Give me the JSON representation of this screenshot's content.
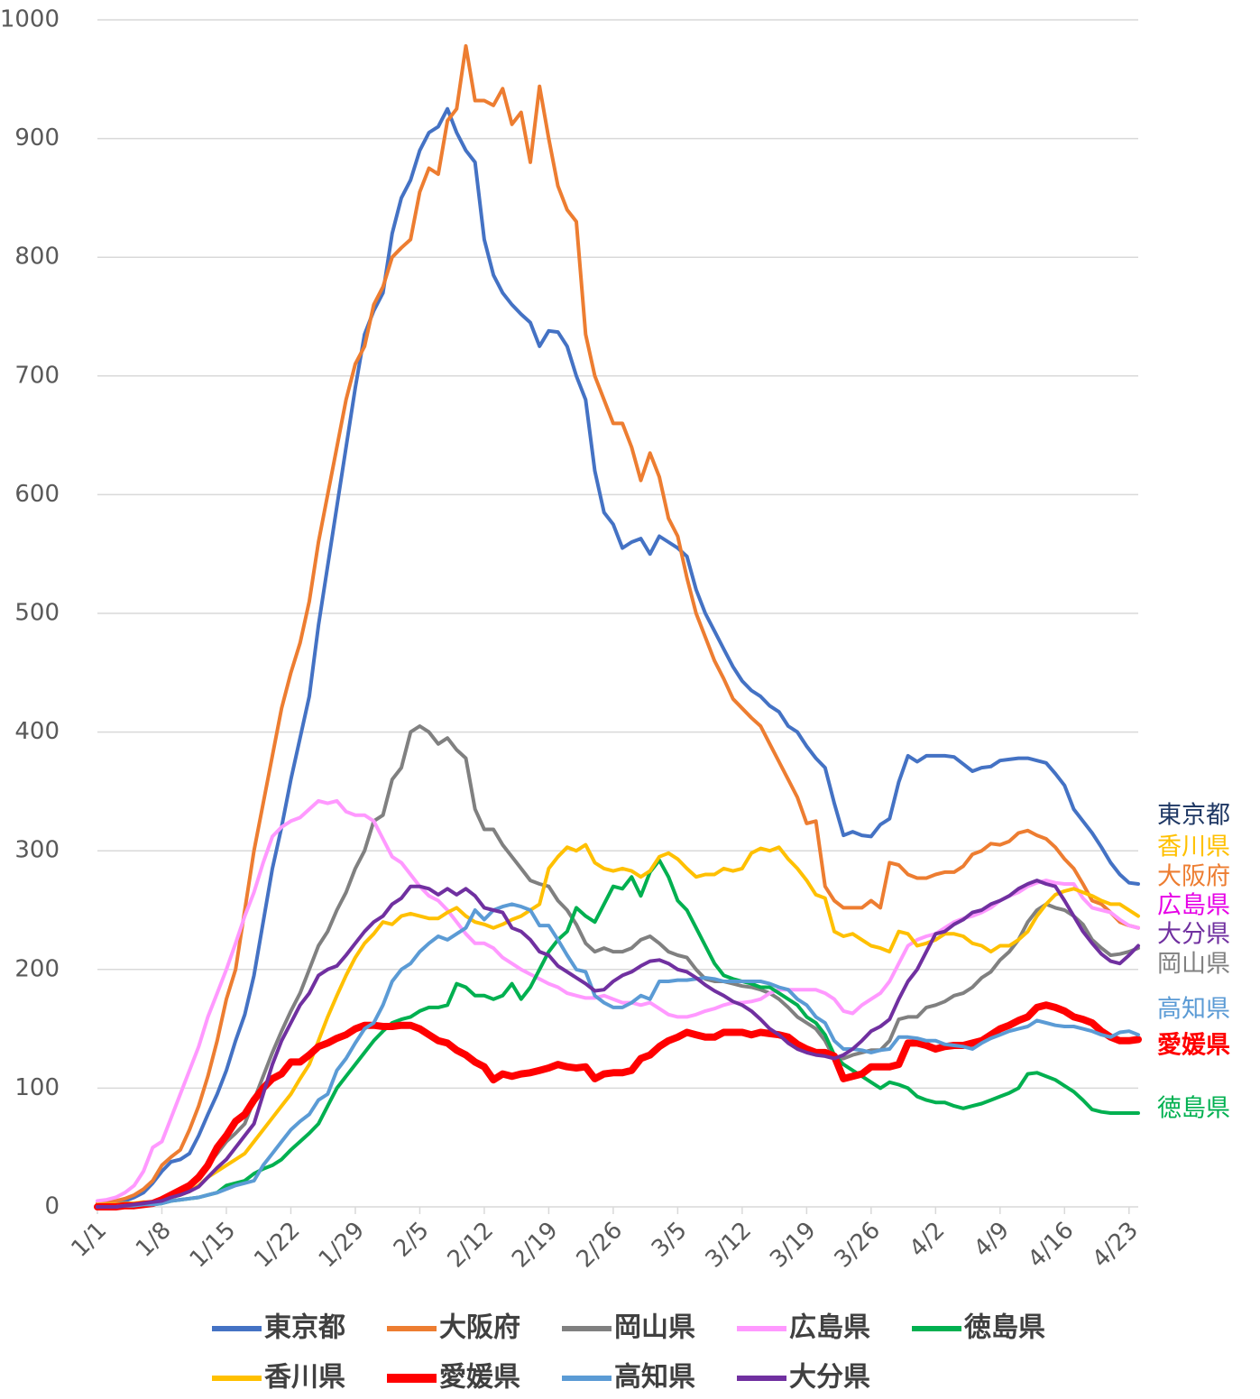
{
  "chart_data": {
    "type": "line",
    "categories": [
      "1/1",
      null,
      null,
      null,
      null,
      null,
      null,
      "1/8",
      null,
      null,
      null,
      null,
      null,
      null,
      "1/15",
      null,
      null,
      null,
      null,
      null,
      null,
      "1/22",
      null,
      null,
      null,
      null,
      null,
      null,
      "1/29",
      null,
      null,
      null,
      null,
      null,
      null,
      "2/5",
      null,
      null,
      null,
      null,
      null,
      null,
      "2/12",
      null,
      null,
      null,
      null,
      null,
      null,
      "2/19",
      null,
      null,
      null,
      null,
      null,
      null,
      "2/26",
      null,
      null,
      null,
      null,
      null,
      null,
      "3/5",
      null,
      null,
      null,
      null,
      null,
      null,
      "3/12",
      null,
      null,
      null,
      null,
      null,
      null,
      "3/19",
      null,
      null,
      null,
      null,
      null,
      null,
      "3/26",
      null,
      null,
      null,
      null,
      null,
      null,
      "4/2",
      null,
      null,
      null,
      null,
      null,
      null,
      "4/9",
      null,
      null,
      null,
      null,
      null,
      null,
      "4/16",
      null,
      null,
      null,
      null,
      null,
      null,
      "4/23",
      null
    ],
    "ylim": [
      0,
      1000
    ],
    "yticks": [
      0,
      100,
      200,
      300,
      400,
      500,
      600,
      700,
      800,
      900,
      1000
    ],
    "grid": true,
    "legend": "bottom",
    "series": [
      {
        "name": "東京都",
        "color": "#4472c4",
        "width": 4,
        "values": [
          0,
          2,
          3,
          5,
          8,
          12,
          20,
          30,
          38,
          40,
          45,
          60,
          78,
          95,
          115,
          140,
          162,
          195,
          240,
          285,
          320,
          360,
          395,
          430,
          490,
          540,
          590,
          640,
          690,
          735,
          755,
          770,
          820,
          850,
          865,
          890,
          905,
          910,
          925,
          905,
          890,
          880,
          815,
          785,
          770,
          760,
          752,
          745,
          725,
          738,
          737,
          725,
          700,
          680,
          620,
          585,
          575,
          555,
          560,
          563,
          550,
          565,
          560,
          555,
          548,
          520,
          500,
          485,
          470,
          455,
          443,
          435,
          430,
          422,
          417,
          405,
          400,
          388,
          378,
          370,
          340,
          313,
          316,
          313,
          312,
          322,
          327,
          358,
          380,
          375,
          380,
          380,
          380,
          379,
          373,
          367,
          370,
          371,
          376,
          377,
          378,
          378,
          376,
          374,
          365,
          355,
          335,
          325,
          315,
          303,
          290,
          280,
          273,
          272
        ]
      },
      {
        "name": "大阪府",
        "color": "#ed7d31",
        "width": 4,
        "values": [
          3,
          4,
          5,
          7,
          10,
          15,
          22,
          35,
          42,
          48,
          65,
          85,
          110,
          140,
          175,
          200,
          250,
          300,
          340,
          380,
          420,
          450,
          475,
          510,
          560,
          600,
          640,
          680,
          710,
          725,
          760,
          775,
          800,
          808,
          815,
          855,
          875,
          870,
          915,
          925,
          978,
          932,
          932,
          928,
          942,
          912,
          922,
          880,
          944,
          900,
          860,
          840,
          830,
          735,
          700,
          680,
          660,
          660,
          640,
          612,
          635,
          615,
          580,
          565,
          530,
          500,
          480,
          460,
          445,
          428,
          420,
          412,
          405,
          390,
          375,
          360,
          345,
          323,
          325,
          270,
          258,
          252,
          252,
          252,
          258,
          252,
          290,
          288,
          280,
          277,
          277,
          280,
          282,
          282,
          287,
          297,
          300,
          306,
          305,
          308,
          315,
          317,
          313,
          310,
          303,
          293,
          285,
          272,
          258,
          255,
          248,
          240,
          237,
          235
        ]
      },
      {
        "name": "岡山県",
        "color": "#808080",
        "width": 4,
        "values": [
          0,
          0,
          1,
          1,
          2,
          3,
          4,
          5,
          8,
          12,
          18,
          25,
          35,
          45,
          55,
          62,
          70,
          90,
          110,
          130,
          148,
          165,
          180,
          200,
          220,
          232,
          250,
          265,
          285,
          300,
          325,
          330,
          360,
          370,
          400,
          405,
          400,
          390,
          395,
          385,
          378,
          335,
          318,
          318,
          305,
          295,
          285,
          275,
          272,
          270,
          258,
          250,
          238,
          222,
          215,
          218,
          215,
          215,
          218,
          225,
          228,
          222,
          215,
          212,
          210,
          200,
          192,
          190,
          190,
          188,
          186,
          185,
          183,
          180,
          175,
          168,
          160,
          155,
          150,
          140,
          125,
          125,
          128,
          130,
          132,
          132,
          140,
          158,
          160,
          160,
          168,
          170,
          173,
          178,
          180,
          185,
          193,
          198,
          208,
          215,
          225,
          240,
          250,
          255,
          252,
          250,
          245,
          238,
          225,
          218,
          212,
          213,
          215,
          218
        ]
      },
      {
        "name": "広島県",
        "color": "#ff99ff",
        "width": 4,
        "values": [
          5,
          6,
          8,
          12,
          18,
          30,
          50,
          55,
          75,
          95,
          115,
          135,
          160,
          180,
          200,
          222,
          245,
          265,
          290,
          312,
          320,
          325,
          328,
          335,
          342,
          340,
          342,
          333,
          330,
          330,
          325,
          310,
          295,
          290,
          280,
          270,
          262,
          258,
          250,
          240,
          230,
          222,
          222,
          218,
          210,
          205,
          200,
          196,
          192,
          188,
          185,
          180,
          178,
          176,
          176,
          178,
          175,
          172,
          172,
          170,
          172,
          167,
          162,
          160,
          160,
          162,
          165,
          167,
          170,
          172,
          172,
          173,
          175,
          180,
          183,
          183,
          183,
          183,
          183,
          180,
          175,
          165,
          163,
          170,
          175,
          180,
          190,
          205,
          220,
          225,
          228,
          230,
          235,
          240,
          243,
          245,
          248,
          252,
          258,
          262,
          265,
          270,
          273,
          275,
          273,
          272,
          272,
          260,
          252,
          250,
          248,
          242,
          237,
          235
        ]
      },
      {
        "name": "徳島県",
        "color": "#00b050",
        "width": 4,
        "values": [
          0,
          0,
          0,
          0,
          1,
          1,
          2,
          3,
          5,
          6,
          7,
          8,
          10,
          12,
          18,
          20,
          22,
          28,
          32,
          35,
          40,
          48,
          55,
          62,
          70,
          85,
          100,
          110,
          120,
          130,
          140,
          148,
          155,
          158,
          160,
          165,
          168,
          168,
          170,
          188,
          185,
          178,
          178,
          175,
          178,
          188,
          175,
          185,
          200,
          215,
          225,
          232,
          252,
          245,
          240,
          255,
          270,
          268,
          278,
          262,
          282,
          292,
          278,
          258,
          250,
          235,
          220,
          205,
          195,
          192,
          190,
          188,
          185,
          185,
          180,
          175,
          170,
          160,
          155,
          145,
          128,
          120,
          115,
          110,
          105,
          100,
          105,
          103,
          100,
          93,
          90,
          88,
          88,
          85,
          83,
          85,
          87,
          90,
          93,
          96,
          100,
          112,
          113,
          110,
          107,
          102,
          97,
          90,
          82,
          80,
          79,
          79,
          79,
          79
        ]
      },
      {
        "name": "香川県",
        "color": "#ffc000",
        "width": 4,
        "values": [
          2,
          2,
          2,
          3,
          3,
          4,
          4,
          5,
          8,
          10,
          13,
          18,
          25,
          30,
          35,
          40,
          45,
          55,
          65,
          75,
          85,
          95,
          108,
          120,
          140,
          160,
          178,
          195,
          210,
          222,
          230,
          240,
          238,
          245,
          247,
          245,
          243,
          243,
          248,
          252,
          245,
          240,
          238,
          235,
          238,
          242,
          245,
          250,
          255,
          285,
          295,
          303,
          300,
          305,
          290,
          285,
          283,
          285,
          283,
          278,
          283,
          295,
          298,
          293,
          285,
          278,
          280,
          280,
          285,
          283,
          285,
          298,
          302,
          300,
          303,
          293,
          285,
          275,
          263,
          260,
          232,
          228,
          230,
          225,
          220,
          218,
          215,
          232,
          230,
          220,
          222,
          225,
          230,
          230,
          228,
          222,
          220,
          215,
          220,
          220,
          225,
          232,
          245,
          255,
          263,
          266,
          268,
          265,
          262,
          258,
          255,
          255,
          250,
          245
        ]
      },
      {
        "name": "愛媛県",
        "color": "#ff0000",
        "width": 8,
        "values": [
          0,
          0,
          0,
          1,
          1,
          2,
          3,
          6,
          10,
          14,
          18,
          25,
          35,
          50,
          60,
          72,
          78,
          90,
          100,
          108,
          112,
          122,
          122,
          128,
          135,
          138,
          142,
          145,
          150,
          153,
          153,
          152,
          152,
          153,
          153,
          150,
          145,
          140,
          138,
          132,
          128,
          122,
          118,
          107,
          112,
          110,
          112,
          113,
          115,
          117,
          120,
          118,
          117,
          118,
          108,
          112,
          113,
          113,
          115,
          125,
          128,
          135,
          140,
          143,
          147,
          145,
          143,
          143,
          147,
          147,
          147,
          145,
          147,
          146,
          145,
          143,
          137,
          133,
          130,
          130,
          127,
          108,
          110,
          112,
          118,
          118,
          118,
          120,
          138,
          138,
          136,
          133,
          135,
          136,
          136,
          138,
          140,
          145,
          150,
          153,
          157,
          160,
          168,
          170,
          168,
          165,
          160,
          158,
          155,
          148,
          143,
          140,
          140,
          141
        ]
      },
      {
        "name": "高知県",
        "color": "#5b9bd5",
        "width": 4,
        "values": [
          0,
          0,
          0,
          1,
          1,
          2,
          2,
          3,
          5,
          6,
          7,
          8,
          10,
          12,
          15,
          18,
          20,
          22,
          35,
          45,
          55,
          65,
          72,
          78,
          90,
          95,
          115,
          125,
          138,
          150,
          155,
          170,
          190,
          200,
          205,
          215,
          222,
          228,
          225,
          230,
          235,
          250,
          242,
          250,
          253,
          255,
          253,
          250,
          237,
          237,
          225,
          212,
          200,
          198,
          178,
          172,
          168,
          168,
          172,
          178,
          175,
          190,
          190,
          191,
          191,
          192,
          193,
          192,
          190,
          190,
          190,
          190,
          190,
          188,
          185,
          183,
          175,
          170,
          160,
          155,
          140,
          133,
          133,
          132,
          130,
          132,
          133,
          143,
          143,
          142,
          140,
          140,
          137,
          136,
          135,
          133,
          138,
          142,
          145,
          148,
          150,
          152,
          157,
          155,
          153,
          152,
          152,
          150,
          148,
          145,
          143,
          147,
          148,
          145
        ]
      },
      {
        "name": "大分県",
        "color": "#7030a0",
        "width": 4,
        "values": [
          0,
          0,
          0,
          1,
          2,
          3,
          4,
          5,
          8,
          10,
          13,
          17,
          25,
          33,
          40,
          50,
          60,
          70,
          95,
          120,
          140,
          155,
          170,
          180,
          195,
          200,
          203,
          212,
          222,
          232,
          240,
          245,
          255,
          260,
          270,
          270,
          268,
          263,
          268,
          263,
          268,
          262,
          252,
          250,
          248,
          235,
          232,
          225,
          215,
          212,
          203,
          198,
          193,
          188,
          182,
          183,
          190,
          195,
          198,
          203,
          207,
          208,
          205,
          200,
          198,
          193,
          187,
          182,
          178,
          173,
          170,
          165,
          158,
          150,
          145,
          138,
          133,
          130,
          128,
          127,
          125,
          128,
          133,
          140,
          148,
          152,
          158,
          175,
          190,
          200,
          215,
          230,
          232,
          238,
          242,
          248,
          250,
          255,
          258,
          262,
          268,
          272,
          275,
          272,
          270,
          258,
          245,
          232,
          222,
          213,
          207,
          205,
          212,
          220
        ]
      }
    ],
    "annotations": [
      {
        "text": "東京都",
        "color": "#1f3864"
      },
      {
        "text": "香川県",
        "color": "#ffc000"
      },
      {
        "text": "大阪府",
        "color": "#ed7d31"
      },
      {
        "text": "広島県",
        "color": "#e600e6"
      },
      {
        "text": "大分県",
        "color": "#7030a0"
      },
      {
        "text": "岡山県",
        "color": "#808080"
      },
      {
        "text": "高知県",
        "color": "#5b9bd5"
      },
      {
        "text": "愛媛県",
        "color": "#ff0000",
        "bold": true
      },
      {
        "text": "徳島県",
        "color": "#00b050"
      }
    ]
  }
}
